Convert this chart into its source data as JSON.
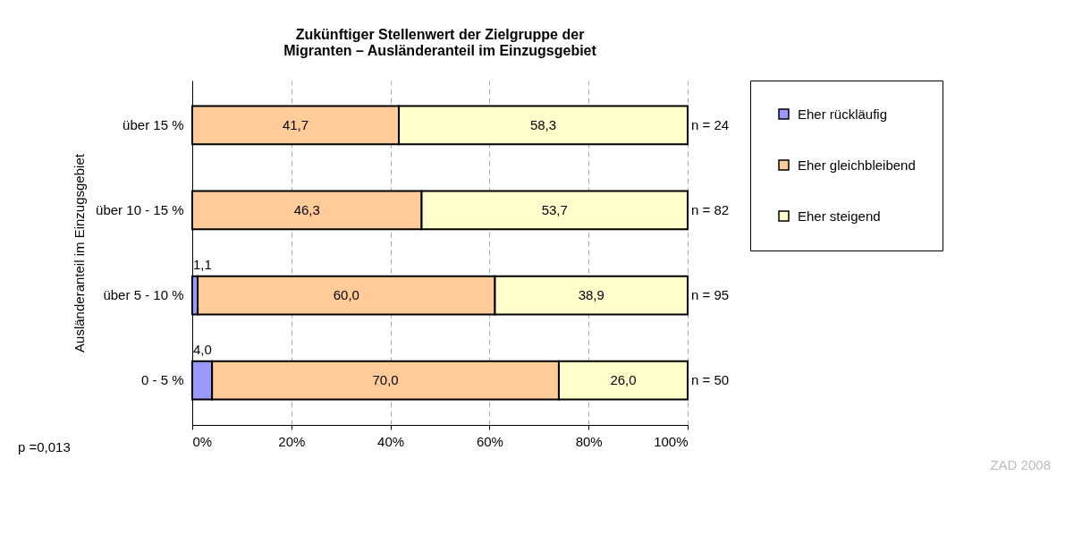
{
  "chart_data": {
    "type": "bar",
    "orientation": "horizontal",
    "stacked": true,
    "title": "Zukünftiger Stellenwert der Zielgruppe der\nMigranten – Ausländeranteil im Einzugsgebiet",
    "ylabel": "Ausländeranteil im Einzugsgebiet",
    "categories": [
      "über 15 %",
      "über 10 - 15 %",
      "über 5 - 10 %",
      "0 - 5 %"
    ],
    "series": [
      {
        "name": "Eher rückläufig",
        "color": "#9999ff",
        "values": [
          null,
          null,
          1.1,
          4.0
        ],
        "value_labels": [
          null,
          null,
          "1,1",
          "4,0"
        ]
      },
      {
        "name": "Eher gleichbleibend",
        "color": "#ffcc99",
        "values": [
          41.7,
          46.3,
          60.0,
          70.0
        ],
        "value_labels": [
          "41,7",
          "46,3",
          "60,0",
          "70,0"
        ]
      },
      {
        "name": "Eher steigend",
        "color": "#ffffcc",
        "values": [
          58.3,
          53.7,
          38.9,
          26.0
        ],
        "value_labels": [
          "58,3",
          "53,7",
          "38,9",
          "26,0"
        ]
      }
    ],
    "xlim": [
      0,
      100
    ],
    "xticks": [
      {
        "value": 0,
        "label": "0%"
      },
      {
        "value": 20,
        "label": "20%"
      },
      {
        "value": 40,
        "label": "40%"
      },
      {
        "value": 60,
        "label": "60%"
      },
      {
        "value": 80,
        "label": "80%"
      },
      {
        "value": 100,
        "label": "100%"
      }
    ],
    "grid": "x",
    "legend": "right",
    "annotations": [
      "n = 24",
      "n = 82",
      "n = 95",
      "n = 50",
      "p =0,013",
      "ZAD 2008"
    ]
  }
}
